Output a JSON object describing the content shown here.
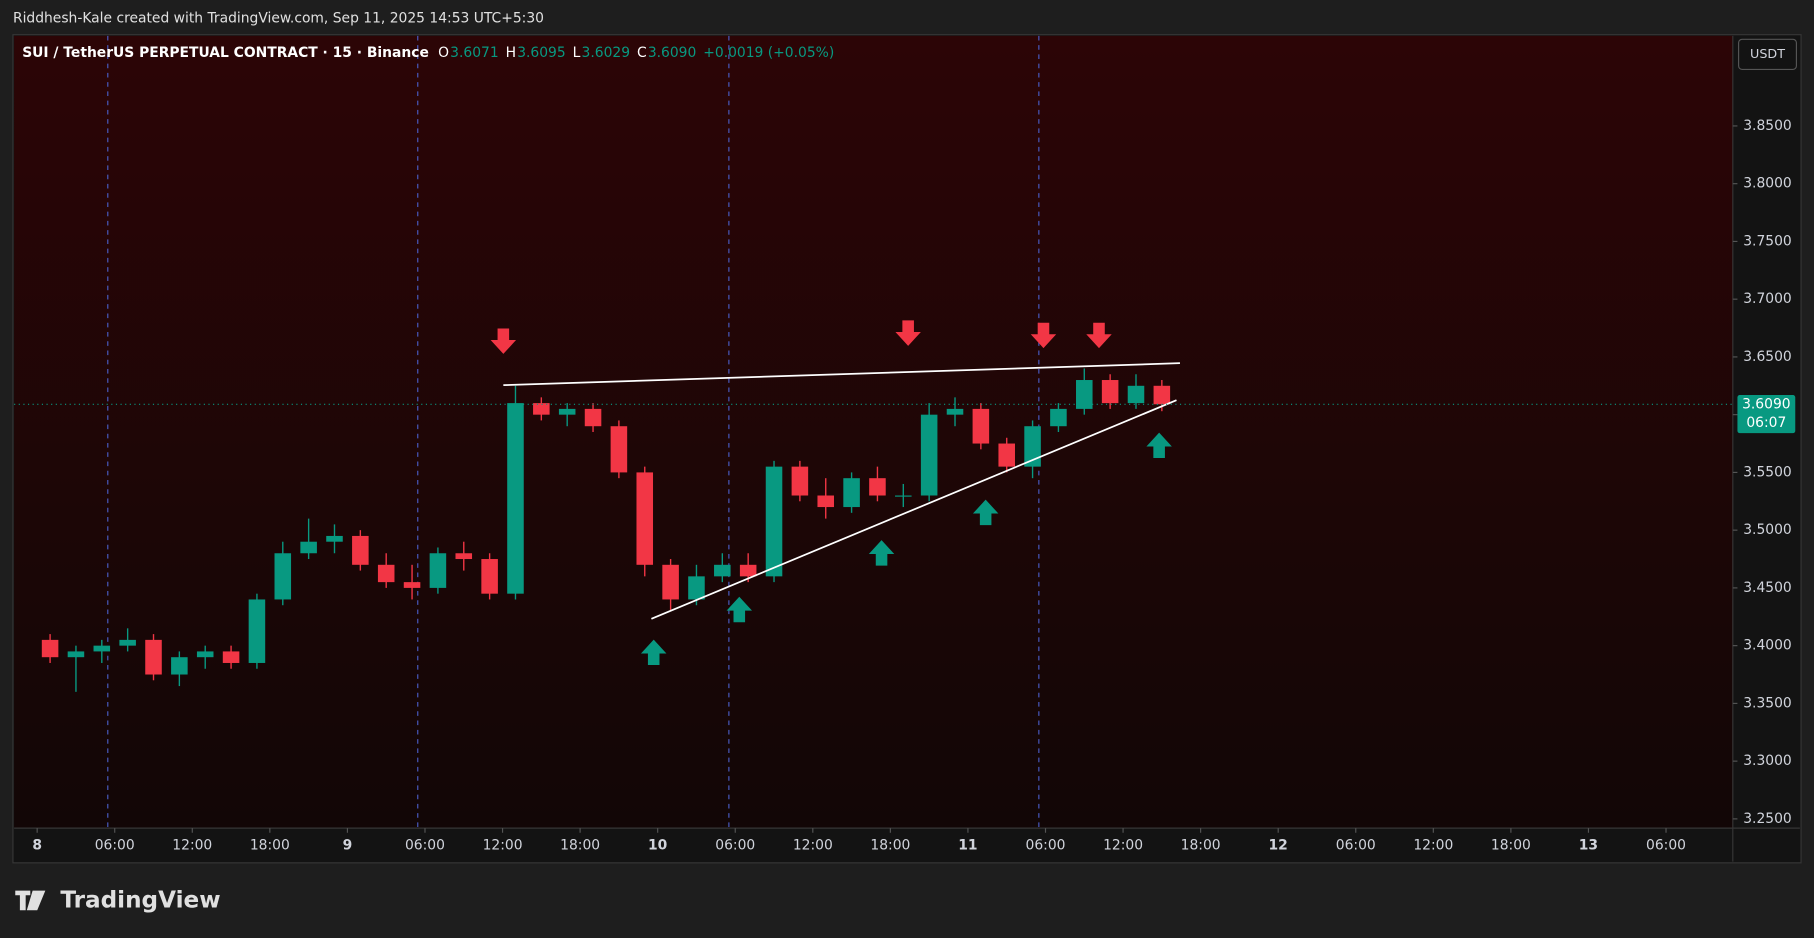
{
  "header": {
    "credit": "Riddhesh-Kale created with TradingView.com, Sep 11, 2025 14:53 UTC+5:30",
    "logo": "TradingView"
  },
  "chart_data": {
    "type": "candlestick",
    "title": "SUI / TetherUS PERPETUAL CONTRACT · 15 · Binance",
    "ohlc_legend": [
      {
        "key": "O",
        "value": "3.6071"
      },
      {
        "key": "H",
        "value": "3.6095"
      },
      {
        "key": "L",
        "value": "3.6029"
      },
      {
        "key": "C",
        "value": "3.6090"
      }
    ],
    "change": "+0.0019 (+0.05%)",
    "currency": "USDT",
    "last_price": {
      "value": 3.609,
      "label": "3.6090"
    },
    "countdown": "06:07",
    "up_color": "#089981",
    "down_color": "#f23645",
    "x": [
      "2025-09-08T00:00",
      "2025-09-08T02:00",
      "2025-09-08T04:00",
      "2025-09-08T06:00",
      "2025-09-08T08:00",
      "2025-09-08T10:00",
      "2025-09-08T12:00",
      "2025-09-08T14:00",
      "2025-09-08T16:00",
      "2025-09-08T18:00",
      "2025-09-08T20:00",
      "2025-09-08T22:00",
      "2025-09-09T00:00",
      "2025-09-09T02:00",
      "2025-09-09T04:00",
      "2025-09-09T06:00",
      "2025-09-09T08:00",
      "2025-09-09T10:00",
      "2025-09-09T12:00",
      "2025-09-09T14:00",
      "2025-09-09T16:00",
      "2025-09-09T18:00",
      "2025-09-09T20:00",
      "2025-09-09T22:00",
      "2025-09-10T00:00",
      "2025-09-10T02:00",
      "2025-09-10T04:00",
      "2025-09-10T06:00",
      "2025-09-10T08:00",
      "2025-09-10T10:00",
      "2025-09-10T12:00",
      "2025-09-10T14:00",
      "2025-09-10T16:00",
      "2025-09-10T18:00",
      "2025-09-10T20:00",
      "2025-09-10T22:00",
      "2025-09-11T00:00",
      "2025-09-11T02:00",
      "2025-09-11T04:00",
      "2025-09-11T06:00",
      "2025-09-11T08:00",
      "2025-09-11T10:00",
      "2025-09-11T12:00",
      "2025-09-11T14:00"
    ],
    "open": [
      3.405,
      3.39,
      3.395,
      3.4,
      3.405,
      3.375,
      3.39,
      3.395,
      3.385,
      3.44,
      3.48,
      3.49,
      3.495,
      3.47,
      3.455,
      3.45,
      3.48,
      3.475,
      3.445,
      3.61,
      3.6,
      3.605,
      3.59,
      3.55,
      3.47,
      3.44,
      3.46,
      3.47,
      3.46,
      3.555,
      3.53,
      3.52,
      3.545,
      3.53,
      3.53,
      3.6,
      3.605,
      3.575,
      3.555,
      3.59,
      3.605,
      3.63,
      3.61,
      3.625
    ],
    "high": [
      3.41,
      3.4,
      3.405,
      3.415,
      3.41,
      3.395,
      3.4,
      3.4,
      3.445,
      3.49,
      3.51,
      3.505,
      3.5,
      3.48,
      3.47,
      3.485,
      3.49,
      3.48,
      3.625,
      3.615,
      3.61,
      3.61,
      3.595,
      3.555,
      3.475,
      3.47,
      3.48,
      3.48,
      3.56,
      3.56,
      3.545,
      3.55,
      3.555,
      3.54,
      3.61,
      3.615,
      3.61,
      3.58,
      3.595,
      3.61,
      3.64,
      3.635,
      3.635,
      3.63
    ],
    "low": [
      3.385,
      3.36,
      3.385,
      3.395,
      3.37,
      3.365,
      3.38,
      3.38,
      3.38,
      3.435,
      3.475,
      3.48,
      3.465,
      3.45,
      3.44,
      3.445,
      3.465,
      3.44,
      3.44,
      3.595,
      3.59,
      3.585,
      3.545,
      3.46,
      3.43,
      3.435,
      3.455,
      3.455,
      3.455,
      3.525,
      3.51,
      3.515,
      3.525,
      3.52,
      3.525,
      3.59,
      3.57,
      3.55,
      3.545,
      3.585,
      3.6,
      3.605,
      3.605,
      3.603
    ],
    "close": [
      3.39,
      3.395,
      3.4,
      3.405,
      3.375,
      3.39,
      3.395,
      3.385,
      3.44,
      3.48,
      3.49,
      3.495,
      3.47,
      3.455,
      3.45,
      3.48,
      3.475,
      3.445,
      3.61,
      3.6,
      3.605,
      3.59,
      3.55,
      3.47,
      3.44,
      3.46,
      3.47,
      3.46,
      3.555,
      3.53,
      3.52,
      3.545,
      3.53,
      3.53,
      3.6,
      3.605,
      3.575,
      3.555,
      3.59,
      3.605,
      3.63,
      3.61,
      3.625,
      3.609
    ],
    "xlim": [
      "2025-09-07T22:13",
      "2025-09-13T11:10"
    ],
    "xticks": [
      {
        "value": "2025-09-08T00:00",
        "label": "8"
      },
      {
        "value": "2025-09-08T06:00",
        "label": "06:00"
      },
      {
        "value": "2025-09-08T12:00",
        "label": "12:00"
      },
      {
        "value": "2025-09-08T18:00",
        "label": "18:00"
      },
      {
        "value": "2025-09-09T00:00",
        "label": "9"
      },
      {
        "value": "2025-09-09T06:00",
        "label": "06:00"
      },
      {
        "value": "2025-09-09T12:00",
        "label": "12:00"
      },
      {
        "value": "2025-09-09T18:00",
        "label": "18:00"
      },
      {
        "value": "2025-09-10T00:00",
        "label": "10"
      },
      {
        "value": "2025-09-10T06:00",
        "label": "06:00"
      },
      {
        "value": "2025-09-10T12:00",
        "label": "12:00"
      },
      {
        "value": "2025-09-10T18:00",
        "label": "18:00"
      },
      {
        "value": "2025-09-11T00:00",
        "label": "11"
      },
      {
        "value": "2025-09-11T06:00",
        "label": "06:00"
      },
      {
        "value": "2025-09-11T12:00",
        "label": "12:00"
      },
      {
        "value": "2025-09-11T18:00",
        "label": "18:00"
      },
      {
        "value": "2025-09-12T00:00",
        "label": "12"
      },
      {
        "value": "2025-09-12T06:00",
        "label": "06:00"
      },
      {
        "value": "2025-09-12T12:00",
        "label": "12:00"
      },
      {
        "value": "2025-09-12T18:00",
        "label": "18:00"
      },
      {
        "value": "2025-09-13T00:00",
        "label": "13"
      },
      {
        "value": "2025-09-13T06:00",
        "label": "06:00"
      }
    ],
    "ylim": [
      3.242,
      3.928
    ],
    "yticks": [
      {
        "value": 3.25,
        "label": "3.2500"
      },
      {
        "value": 3.3,
        "label": "3.3000"
      },
      {
        "value": 3.35,
        "label": "3.3500"
      },
      {
        "value": 3.4,
        "label": "3.4000"
      },
      {
        "value": 3.45,
        "label": "3.4500"
      },
      {
        "value": 3.5,
        "label": "3.5000"
      },
      {
        "value": 3.55,
        "label": "3.5500"
      },
      {
        "value": 3.6,
        "label": "3.6000"
      },
      {
        "value": 3.65,
        "label": "3.6500"
      },
      {
        "value": 3.7,
        "label": "3.7000"
      },
      {
        "value": 3.75,
        "label": "3.7500"
      },
      {
        "value": 3.8,
        "label": "3.8000"
      },
      {
        "value": 3.85,
        "label": "3.8500"
      }
    ]
  }
}
